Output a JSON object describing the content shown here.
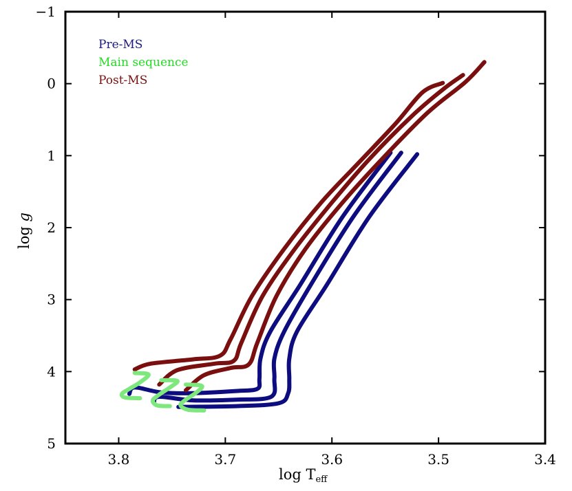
{
  "chart_data": {
    "type": "line",
    "title": "",
    "xlabel_main": "log T",
    "xlabel_sub": "eff",
    "ylabel_main": "log ",
    "ylabel_var": "g",
    "xlim": [
      3.85,
      3.4
    ],
    "ylim": [
      5,
      -1
    ],
    "x_ticks": [
      3.8,
      3.7,
      3.6,
      3.5,
      3.4
    ],
    "x_tick_labels": [
      "3.8",
      "3.7",
      "3.6",
      "3.5",
      "3.4"
    ],
    "y_ticks": [
      -1,
      0,
      1,
      2,
      3,
      4,
      5
    ],
    "y_tick_labels": [
      "−1",
      "0",
      "1",
      "2",
      "3",
      "4",
      "5"
    ],
    "grid": false,
    "legend_position": "top-left",
    "legend": [
      {
        "label": "Pre-MS",
        "color": "#1a1a80"
      },
      {
        "label": "Main sequence",
        "color": "#22dd22"
      },
      {
        "label": "Post-MS",
        "color": "#7a0f0f"
      }
    ],
    "colors": {
      "pre_ms": "#0d0d80",
      "main_sequence": "#7ee87e",
      "post_ms": "#7a0f0f"
    },
    "tracks": [
      {
        "name": "track-1",
        "pre_ms": [
          [
            3.545,
            0.96
          ],
          [
            3.59,
            1.85
          ],
          [
            3.63,
            2.8
          ],
          [
            3.658,
            3.45
          ],
          [
            3.667,
            3.82
          ],
          [
            3.668,
            4.1
          ],
          [
            3.67,
            4.24
          ],
          [
            3.69,
            4.27
          ],
          [
            3.73,
            4.3
          ],
          [
            3.76,
            4.29
          ],
          [
            3.785,
            4.22
          ],
          [
            3.79,
            4.31
          ]
        ],
        "main_sequence": [
          [
            3.78,
            4.37
          ],
          [
            3.794,
            4.36
          ],
          [
            3.797,
            4.31
          ],
          [
            3.79,
            4.24
          ],
          [
            3.78,
            4.15
          ],
          [
            3.772,
            4.04
          ],
          [
            3.785,
            4.02
          ]
        ],
        "post_ms": [
          [
            3.785,
            3.97
          ],
          [
            3.77,
            3.89
          ],
          [
            3.73,
            3.83
          ],
          [
            3.705,
            3.78
          ],
          [
            3.695,
            3.55
          ],
          [
            3.675,
            2.95
          ],
          [
            3.645,
            2.3
          ],
          [
            3.61,
            1.65
          ],
          [
            3.575,
            1.1
          ],
          [
            3.54,
            0.55
          ],
          [
            3.515,
            0.12
          ],
          [
            3.496,
            -0.01
          ]
        ]
      },
      {
        "name": "track-2",
        "pre_ms": [
          [
            3.535,
            0.96
          ],
          [
            3.58,
            1.85
          ],
          [
            3.62,
            2.8
          ],
          [
            3.645,
            3.45
          ],
          [
            3.654,
            3.82
          ],
          [
            3.654,
            4.1
          ],
          [
            3.657,
            4.35
          ],
          [
            3.69,
            4.39
          ],
          [
            3.73,
            4.4
          ],
          [
            3.762,
            4.35
          ],
          [
            3.767,
            4.43
          ]
        ],
        "main_sequence": [
          [
            3.752,
            4.48
          ],
          [
            3.764,
            4.47
          ],
          [
            3.768,
            4.4
          ],
          [
            3.762,
            4.32
          ],
          [
            3.752,
            4.22
          ],
          [
            3.745,
            4.13
          ],
          [
            3.76,
            4.12
          ]
        ],
        "post_ms": [
          [
            3.762,
            4.18
          ],
          [
            3.745,
            3.98
          ],
          [
            3.71,
            3.89
          ],
          [
            3.692,
            3.85
          ],
          [
            3.685,
            3.6
          ],
          [
            3.665,
            2.95
          ],
          [
            3.635,
            2.3
          ],
          [
            3.6,
            1.65
          ],
          [
            3.565,
            1.05
          ],
          [
            3.525,
            0.45
          ],
          [
            3.495,
            0.07
          ],
          [
            3.477,
            -0.12
          ]
        ]
      },
      {
        "name": "track-3",
        "pre_ms": [
          [
            3.52,
            0.98
          ],
          [
            3.565,
            1.85
          ],
          [
            3.605,
            2.8
          ],
          [
            3.633,
            3.45
          ],
          [
            3.64,
            3.82
          ],
          [
            3.64,
            4.1
          ],
          [
            3.641,
            4.3
          ],
          [
            3.65,
            4.44
          ],
          [
            3.69,
            4.48
          ],
          [
            3.74,
            4.49
          ],
          [
            3.741,
            4.49
          ]
        ],
        "main_sequence": [
          [
            3.72,
            4.54
          ],
          [
            3.735,
            4.53
          ],
          [
            3.742,
            4.47
          ],
          [
            3.738,
            4.4
          ],
          [
            3.728,
            4.3
          ],
          [
            3.722,
            4.2
          ],
          [
            3.737,
            4.18
          ]
        ],
        "post_ms": [
          [
            3.737,
            4.26
          ],
          [
            3.72,
            4.05
          ],
          [
            3.695,
            3.95
          ],
          [
            3.678,
            3.9
          ],
          [
            3.67,
            3.6
          ],
          [
            3.652,
            2.95
          ],
          [
            3.625,
            2.3
          ],
          [
            3.59,
            1.65
          ],
          [
            3.55,
            1.0
          ],
          [
            3.51,
            0.4
          ],
          [
            3.475,
            -0.02
          ],
          [
            3.457,
            -0.3
          ]
        ]
      }
    ]
  }
}
